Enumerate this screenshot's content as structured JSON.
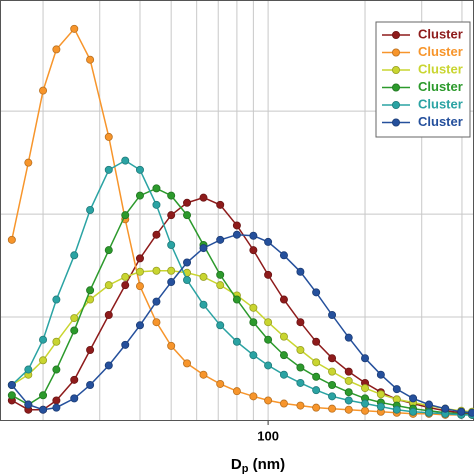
{
  "chart_data": {
    "type": "line",
    "log_x": true,
    "grid": true,
    "x_label_parts": [
      "D",
      "p",
      " (nm)"
    ],
    "x": [
      16,
      18,
      20,
      22,
      25,
      28,
      32,
      36,
      40,
      45,
      50,
      56,
      63,
      71,
      80,
      90,
      100,
      112,
      126,
      141,
      158,
      178,
      200,
      224,
      251,
      282,
      316,
      355,
      398,
      430
    ],
    "xlim": [
      14.7,
      436
    ],
    "xticks": [
      100
    ],
    "x_minor_grid": [
      20,
      30,
      40,
      50,
      60,
      70,
      80,
      90,
      200,
      300,
      400
    ],
    "ylim": [
      0,
      4.08
    ],
    "y_grid": [
      1,
      2,
      3
    ],
    "legend_position": "upper right",
    "series": [
      {
        "name": "Cluster",
        "color": "#8e1b1b",
        "values": [
          0.19,
          0.1,
          0.1,
          0.19,
          0.39,
          0.68,
          1.02,
          1.31,
          1.57,
          1.8,
          1.99,
          2.11,
          2.16,
          2.09,
          1.89,
          1.65,
          1.41,
          1.17,
          0.95,
          0.76,
          0.6,
          0.47,
          0.36,
          0.27,
          0.2,
          0.16,
          0.12,
          0.09,
          0.07,
          0.06
        ]
      },
      {
        "name": "Cluster",
        "color": "#f7952b",
        "values": [
          1.75,
          2.5,
          3.2,
          3.6,
          3.8,
          3.5,
          2.75,
          1.95,
          1.3,
          0.95,
          0.72,
          0.55,
          0.44,
          0.35,
          0.28,
          0.23,
          0.19,
          0.16,
          0.14,
          0.12,
          0.11,
          0.1,
          0.09,
          0.08,
          0.07,
          0.06,
          0.06,
          0.05,
          0.05,
          0.05
        ]
      },
      {
        "name": "Cluster",
        "color": "#c9d530",
        "values": [
          0.34,
          0.44,
          0.58,
          0.76,
          0.99,
          1.17,
          1.31,
          1.39,
          1.44,
          1.45,
          1.45,
          1.43,
          1.39,
          1.31,
          1.21,
          1.09,
          0.95,
          0.81,
          0.68,
          0.56,
          0.47,
          0.38,
          0.31,
          0.25,
          0.2,
          0.17,
          0.14,
          0.11,
          0.09,
          0.08
        ]
      },
      {
        "name": "Cluster",
        "color": "#2c9a2c",
        "values": [
          0.24,
          0.15,
          0.24,
          0.49,
          0.87,
          1.26,
          1.65,
          1.99,
          2.18,
          2.25,
          2.18,
          1.99,
          1.7,
          1.41,
          1.17,
          0.95,
          0.78,
          0.63,
          0.51,
          0.42,
          0.34,
          0.27,
          0.21,
          0.17,
          0.14,
          0.11,
          0.09,
          0.07,
          0.06,
          0.05
        ]
      },
      {
        "name": "Cluster",
        "color": "#2aa3a3",
        "values": [
          0.34,
          0.49,
          0.78,
          1.17,
          1.6,
          2.04,
          2.43,
          2.52,
          2.43,
          2.09,
          1.7,
          1.36,
          1.12,
          0.92,
          0.76,
          0.63,
          0.53,
          0.44,
          0.36,
          0.29,
          0.23,
          0.19,
          0.16,
          0.13,
          0.1,
          0.08,
          0.07,
          0.06,
          0.05,
          0.05
        ]
      },
      {
        "name": "Cluster",
        "color": "#25509c",
        "values": [
          0.34,
          0.15,
          0.1,
          0.12,
          0.21,
          0.34,
          0.53,
          0.73,
          0.92,
          1.15,
          1.34,
          1.53,
          1.67,
          1.75,
          1.8,
          1.79,
          1.73,
          1.6,
          1.44,
          1.24,
          1.02,
          0.8,
          0.6,
          0.44,
          0.3,
          0.21,
          0.15,
          0.11,
          0.08,
          0.07
        ]
      }
    ]
  }
}
